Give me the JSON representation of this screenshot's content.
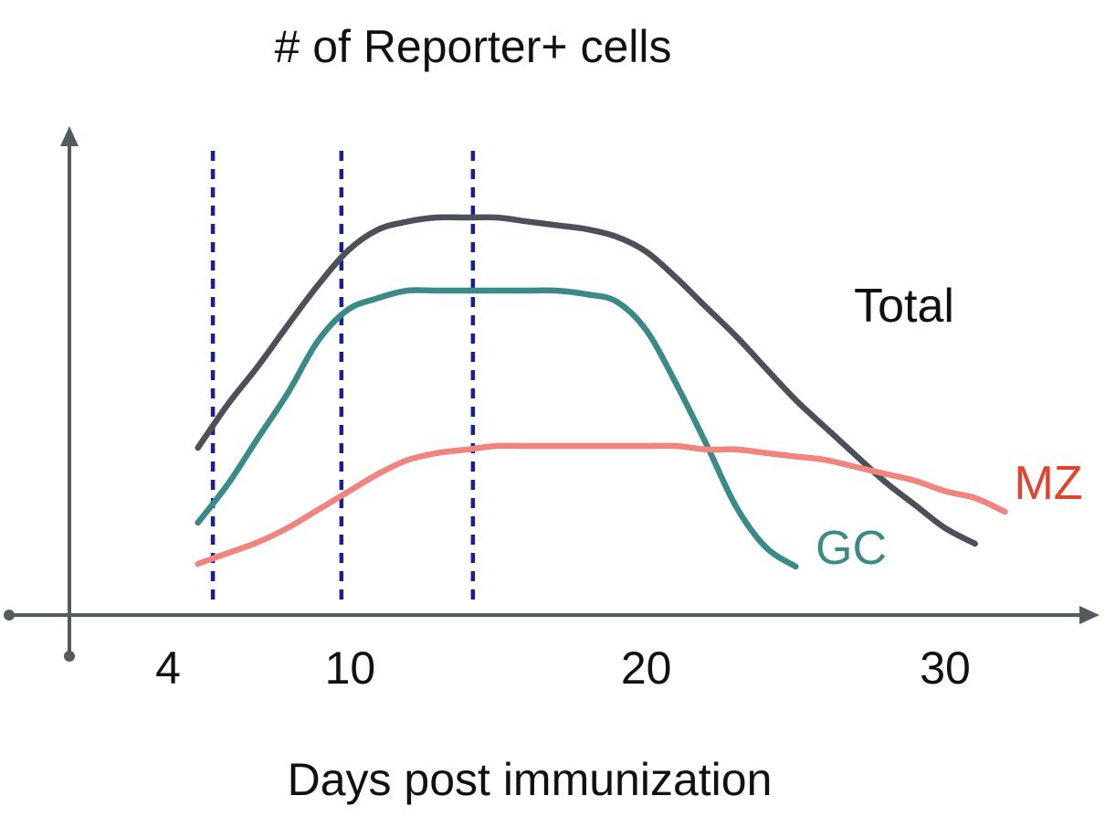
{
  "chart_data": {
    "type": "line",
    "title": "# of Reporter+ cells",
    "xlabel": "Days post immunization",
    "ylabel": "",
    "x_ticks": [
      4,
      10,
      20,
      30
    ],
    "xlim": [
      2.5,
      35
    ],
    "ylim": [
      0,
      1
    ],
    "grid": false,
    "legend": "inline labels at line ends",
    "markers_x": [
      5.5,
      9.8,
      14.2
    ],
    "series": [
      {
        "name": "Total",
        "color": "#4d5058",
        "x": [
          5,
          6,
          7,
          8,
          9,
          10,
          11,
          12,
          13,
          14,
          15,
          16,
          17,
          18,
          19,
          20,
          21,
          22,
          23,
          24,
          25,
          26,
          27,
          28,
          29,
          30,
          31
        ],
        "y": [
          0.42,
          0.51,
          0.59,
          0.68,
          0.77,
          0.85,
          0.9,
          0.92,
          0.93,
          0.93,
          0.93,
          0.92,
          0.91,
          0.9,
          0.88,
          0.84,
          0.77,
          0.69,
          0.61,
          0.52,
          0.43,
          0.35,
          0.27,
          0.19,
          0.12,
          0.05,
          0.0
        ]
      },
      {
        "name": "GC",
        "color": "#3a8a87",
        "x": [
          5,
          6,
          7,
          8,
          9,
          10,
          11,
          12,
          13,
          14,
          15,
          16,
          17,
          18,
          19,
          20,
          21,
          22,
          23,
          24,
          25
        ],
        "y": [
          0.22,
          0.31,
          0.42,
          0.53,
          0.66,
          0.74,
          0.77,
          0.79,
          0.79,
          0.79,
          0.79,
          0.79,
          0.79,
          0.78,
          0.76,
          0.68,
          0.53,
          0.36,
          0.18,
          0.06,
          0.0
        ]
      },
      {
        "name": "MZ",
        "color": "#f0857f",
        "label_color": "#e4412f",
        "x": [
          5,
          6,
          7,
          8,
          9,
          10,
          11,
          12,
          13,
          14,
          15,
          16,
          17,
          18,
          19,
          20,
          21,
          22,
          23,
          24,
          25,
          26,
          27,
          28,
          29,
          30,
          31,
          32
        ],
        "y": [
          0.0,
          0.03,
          0.06,
          0.1,
          0.15,
          0.2,
          0.25,
          0.29,
          0.31,
          0.32,
          0.33,
          0.33,
          0.33,
          0.33,
          0.33,
          0.33,
          0.33,
          0.32,
          0.32,
          0.31,
          0.3,
          0.29,
          0.27,
          0.25,
          0.23,
          0.2,
          0.18,
          0.14
        ]
      }
    ]
  }
}
